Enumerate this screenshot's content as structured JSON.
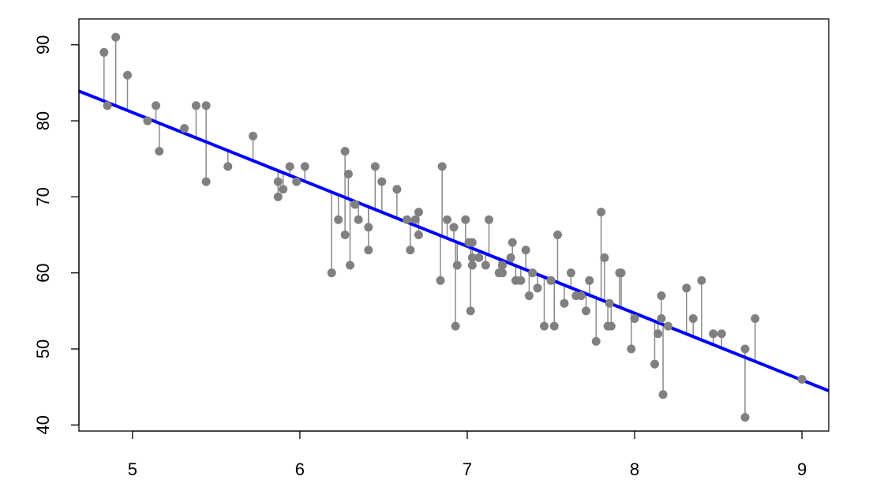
{
  "chart_data": {
    "type": "scatter",
    "title": "",
    "xlabel": "",
    "ylabel": "",
    "xlim": [
      4.68,
      9.16
    ],
    "ylim": [
      39.2,
      93.4
    ],
    "x_ticks": [
      5,
      6,
      7,
      8,
      9
    ],
    "y_ticks": [
      40,
      50,
      60,
      70,
      80,
      90
    ],
    "grid": false,
    "point_color": "#808080",
    "residual_color": "#8a8a8a",
    "fit_color": "#0000ff",
    "fit_line": {
      "intercept": 125.1,
      "slope": -8.8
    },
    "points": [
      {
        "x": 4.83,
        "y": 89
      },
      {
        "x": 4.85,
        "y": 82
      },
      {
        "x": 4.9,
        "y": 91
      },
      {
        "x": 4.97,
        "y": 86
      },
      {
        "x": 5.09,
        "y": 80
      },
      {
        "x": 5.14,
        "y": 82
      },
      {
        "x": 5.16,
        "y": 76
      },
      {
        "x": 5.31,
        "y": 79
      },
      {
        "x": 5.38,
        "y": 82
      },
      {
        "x": 5.44,
        "y": 82
      },
      {
        "x": 5.44,
        "y": 72
      },
      {
        "x": 5.57,
        "y": 74
      },
      {
        "x": 5.72,
        "y": 78
      },
      {
        "x": 5.87,
        "y": 72
      },
      {
        "x": 5.87,
        "y": 70
      },
      {
        "x": 5.9,
        "y": 71
      },
      {
        "x": 5.94,
        "y": 74
      },
      {
        "x": 5.98,
        "y": 72
      },
      {
        "x": 6.03,
        "y": 74
      },
      {
        "x": 6.19,
        "y": 60
      },
      {
        "x": 6.23,
        "y": 67
      },
      {
        "x": 6.27,
        "y": 76
      },
      {
        "x": 6.27,
        "y": 65
      },
      {
        "x": 6.29,
        "y": 73
      },
      {
        "x": 6.3,
        "y": 61
      },
      {
        "x": 6.33,
        "y": 69
      },
      {
        "x": 6.35,
        "y": 67
      },
      {
        "x": 6.41,
        "y": 66
      },
      {
        "x": 6.41,
        "y": 63
      },
      {
        "x": 6.45,
        "y": 74
      },
      {
        "x": 6.49,
        "y": 72
      },
      {
        "x": 6.58,
        "y": 71
      },
      {
        "x": 6.64,
        "y": 67
      },
      {
        "x": 6.66,
        "y": 63
      },
      {
        "x": 6.69,
        "y": 67
      },
      {
        "x": 6.71,
        "y": 68
      },
      {
        "x": 6.71,
        "y": 65
      },
      {
        "x": 6.84,
        "y": 59
      },
      {
        "x": 6.85,
        "y": 74
      },
      {
        "x": 6.88,
        "y": 67
      },
      {
        "x": 6.92,
        "y": 66
      },
      {
        "x": 6.93,
        "y": 53
      },
      {
        "x": 6.94,
        "y": 61
      },
      {
        "x": 6.99,
        "y": 67
      },
      {
        "x": 7.01,
        "y": 64
      },
      {
        "x": 7.02,
        "y": 55
      },
      {
        "x": 7.03,
        "y": 64
      },
      {
        "x": 7.03,
        "y": 62
      },
      {
        "x": 7.03,
        "y": 61
      },
      {
        "x": 7.07,
        "y": 62
      },
      {
        "x": 7.11,
        "y": 61
      },
      {
        "x": 7.13,
        "y": 67
      },
      {
        "x": 7.19,
        "y": 60
      },
      {
        "x": 7.21,
        "y": 61
      },
      {
        "x": 7.21,
        "y": 60
      },
      {
        "x": 7.26,
        "y": 62
      },
      {
        "x": 7.27,
        "y": 64
      },
      {
        "x": 7.29,
        "y": 59
      },
      {
        "x": 7.32,
        "y": 59
      },
      {
        "x": 7.35,
        "y": 63
      },
      {
        "x": 7.37,
        "y": 57
      },
      {
        "x": 7.39,
        "y": 60
      },
      {
        "x": 7.42,
        "y": 58
      },
      {
        "x": 7.46,
        "y": 53
      },
      {
        "x": 7.5,
        "y": 59
      },
      {
        "x": 7.52,
        "y": 53
      },
      {
        "x": 7.54,
        "y": 65
      },
      {
        "x": 7.58,
        "y": 56
      },
      {
        "x": 7.62,
        "y": 60
      },
      {
        "x": 7.65,
        "y": 57
      },
      {
        "x": 7.68,
        "y": 57
      },
      {
        "x": 7.71,
        "y": 55
      },
      {
        "x": 7.73,
        "y": 59
      },
      {
        "x": 7.77,
        "y": 51
      },
      {
        "x": 7.8,
        "y": 68
      },
      {
        "x": 7.82,
        "y": 62
      },
      {
        "x": 7.84,
        "y": 53
      },
      {
        "x": 7.85,
        "y": 56
      },
      {
        "x": 7.86,
        "y": 53
      },
      {
        "x": 7.91,
        "y": 60
      },
      {
        "x": 7.92,
        "y": 60
      },
      {
        "x": 7.98,
        "y": 50
      },
      {
        "x": 8.0,
        "y": 54
      },
      {
        "x": 8.12,
        "y": 48
      },
      {
        "x": 8.14,
        "y": 52
      },
      {
        "x": 8.16,
        "y": 54
      },
      {
        "x": 8.16,
        "y": 57
      },
      {
        "x": 8.17,
        "y": 44
      },
      {
        "x": 8.2,
        "y": 53
      },
      {
        "x": 8.31,
        "y": 58
      },
      {
        "x": 8.35,
        "y": 54
      },
      {
        "x": 8.4,
        "y": 59
      },
      {
        "x": 8.47,
        "y": 52
      },
      {
        "x": 8.52,
        "y": 52
      },
      {
        "x": 8.66,
        "y": 50
      },
      {
        "x": 8.66,
        "y": 41
      },
      {
        "x": 8.72,
        "y": 54
      },
      {
        "x": 9.0,
        "y": 46
      }
    ]
  }
}
